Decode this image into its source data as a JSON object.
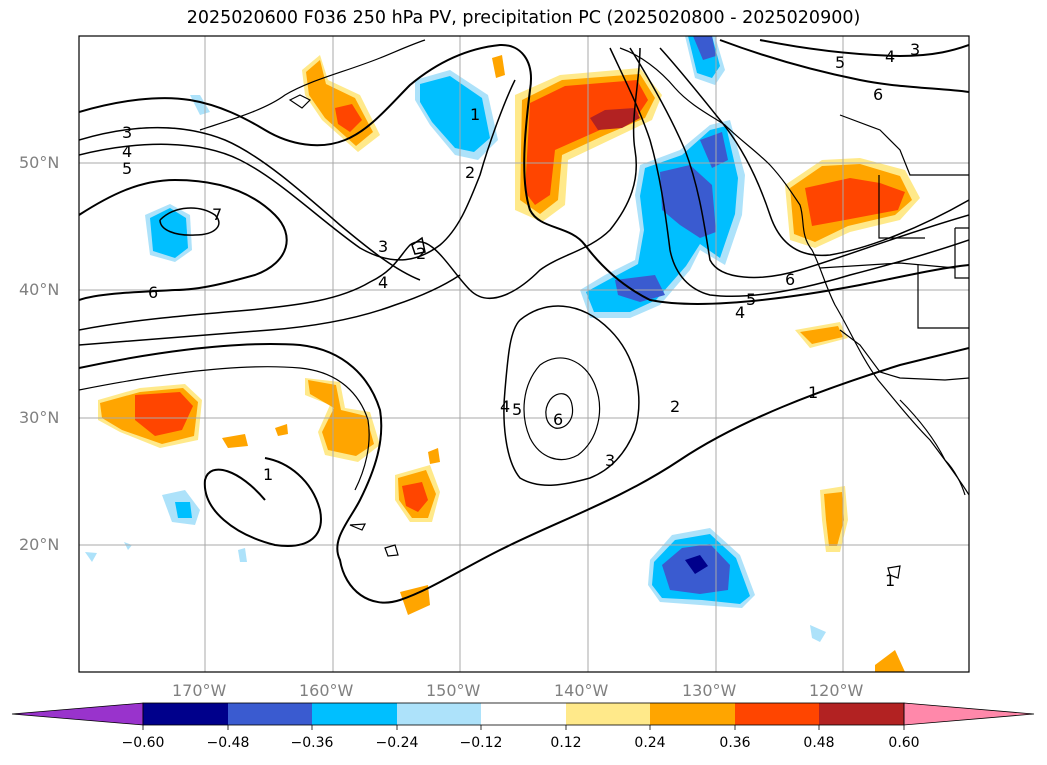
{
  "title": "2025020600 F036 250 hPa PV, precipitation PC (2025020800 - 2025020900)",
  "map": {
    "lat_ticks": [
      "50°N",
      "40°N",
      "30°N",
      "20°N"
    ],
    "lon_ticks": [
      "170°W",
      "160°W",
      "150°W",
      "140°W",
      "130°W",
      "120°W"
    ],
    "grid": true,
    "pv_contour_labels": [
      "1",
      "2",
      "3",
      "4",
      "5",
      "6",
      "7"
    ],
    "colors": {
      "ocean_bg": "#ffffff",
      "gridline": "#a9a9a9",
      "coast": "#000000"
    }
  },
  "colorbar": {
    "extend": "both",
    "colors": [
      "#9933cc",
      "#00008b",
      "#3a5bd0",
      "#00bfff",
      "#ade2fa",
      "#ffffff",
      "#ffe98a",
      "#ffa500",
      "#ff4500",
      "#b22222",
      "#ff88aa"
    ],
    "tick_labels": [
      "−0.60",
      "−0.48",
      "−0.36",
      "−0.24",
      "−0.12",
      "0.12",
      "0.24",
      "0.36",
      "0.48",
      "0.60"
    ]
  }
}
